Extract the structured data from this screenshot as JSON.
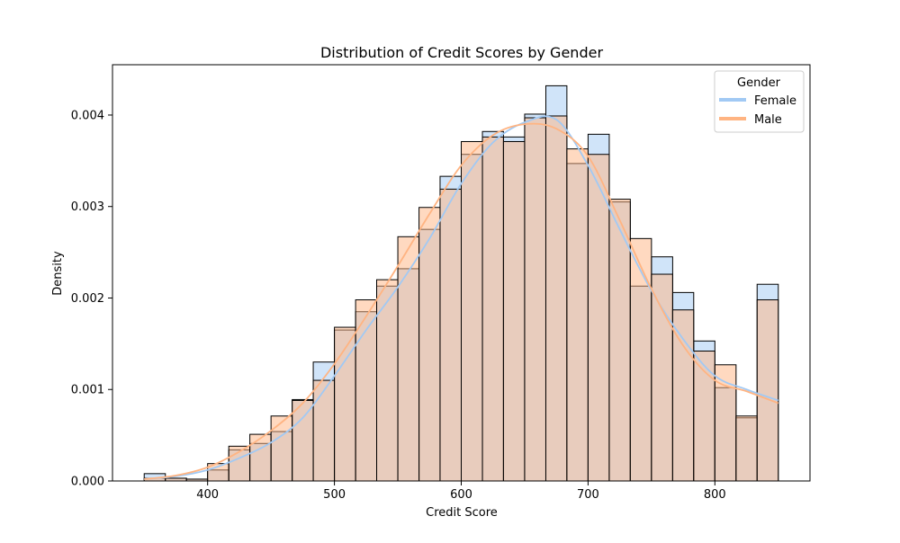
{
  "chart_data": {
    "type": "histogram",
    "title": "Distribution of Credit Scores by Gender",
    "xlabel": "Credit Score",
    "ylabel": "Density",
    "xlim": [
      325,
      875
    ],
    "ylim": [
      0,
      0.00455
    ],
    "xticks": [
      400,
      500,
      600,
      700,
      800
    ],
    "yticks": [
      0,
      0.001,
      0.002,
      0.003,
      0.004
    ],
    "ytick_labels": [
      "0.000",
      "0.001",
      "0.002",
      "0.003",
      "0.004"
    ],
    "bin_edges": [
      350,
      366.7,
      383.3,
      400,
      416.7,
      433.3,
      450,
      466.7,
      483.3,
      500,
      516.7,
      533.3,
      550,
      566.7,
      583.3,
      600,
      616.7,
      633.3,
      650,
      666.7,
      683.3,
      700,
      716.7,
      733.3,
      750,
      766.7,
      783.3,
      800,
      816.7,
      833.3,
      850
    ],
    "legend": {
      "title": "Gender",
      "position": "upper right"
    },
    "grid": false,
    "series": [
      {
        "name": "Female",
        "color": "#a1c9f4",
        "hist_fill": "rgba(161,201,244,0.5)",
        "values": [
          8e-05,
          3e-05,
          2e-05,
          0.00012,
          0.00034,
          0.00041,
          0.00054,
          0.00089,
          0.0013,
          0.00165,
          0.00185,
          0.00213,
          0.00232,
          0.00275,
          0.00333,
          0.00357,
          0.00382,
          0.00376,
          0.00401,
          0.00432,
          0.00347,
          0.00379,
          0.00305,
          0.00213,
          0.00245,
          0.00206,
          0.00153,
          0.00102,
          0.00069,
          0.00215
        ],
        "kde_x": [
          350,
          375,
          400,
          425,
          450,
          475,
          500,
          525,
          550,
          575,
          600,
          625,
          650,
          675,
          700,
          725,
          750,
          775,
          800,
          825,
          850
        ],
        "kde_y": [
          2e-05,
          5e-05,
          0.00012,
          0.00025,
          0.00042,
          0.00069,
          0.00115,
          0.00165,
          0.00212,
          0.00265,
          0.00325,
          0.0037,
          0.00392,
          0.00395,
          0.00345,
          0.00275,
          0.00208,
          0.00155,
          0.00115,
          0.001,
          0.00088
        ]
      },
      {
        "name": "Male",
        "color": "#ffb482",
        "hist_fill": "rgba(255,180,130,0.5)",
        "values": [
          3e-05,
          3e-05,
          2e-05,
          0.00019,
          0.00038,
          0.00051,
          0.00071,
          0.00088,
          0.0011,
          0.00168,
          0.00198,
          0.0022,
          0.00267,
          0.00299,
          0.00319,
          0.00371,
          0.00376,
          0.00371,
          0.00397,
          0.00399,
          0.00363,
          0.00357,
          0.00308,
          0.00265,
          0.00226,
          0.00187,
          0.00142,
          0.00127,
          0.00071,
          0.00198
        ],
        "kde_x": [
          350,
          375,
          400,
          425,
          450,
          475,
          500,
          525,
          550,
          575,
          600,
          625,
          650,
          675,
          700,
          725,
          750,
          775,
          800,
          825,
          850
        ],
        "kde_y": [
          2e-05,
          6e-05,
          0.00015,
          0.00032,
          0.00055,
          0.00085,
          0.00128,
          0.0018,
          0.00235,
          0.00292,
          0.00345,
          0.00378,
          0.0039,
          0.00385,
          0.00355,
          0.00285,
          0.0021,
          0.00148,
          0.0011,
          0.00098,
          0.00085
        ]
      }
    ]
  }
}
